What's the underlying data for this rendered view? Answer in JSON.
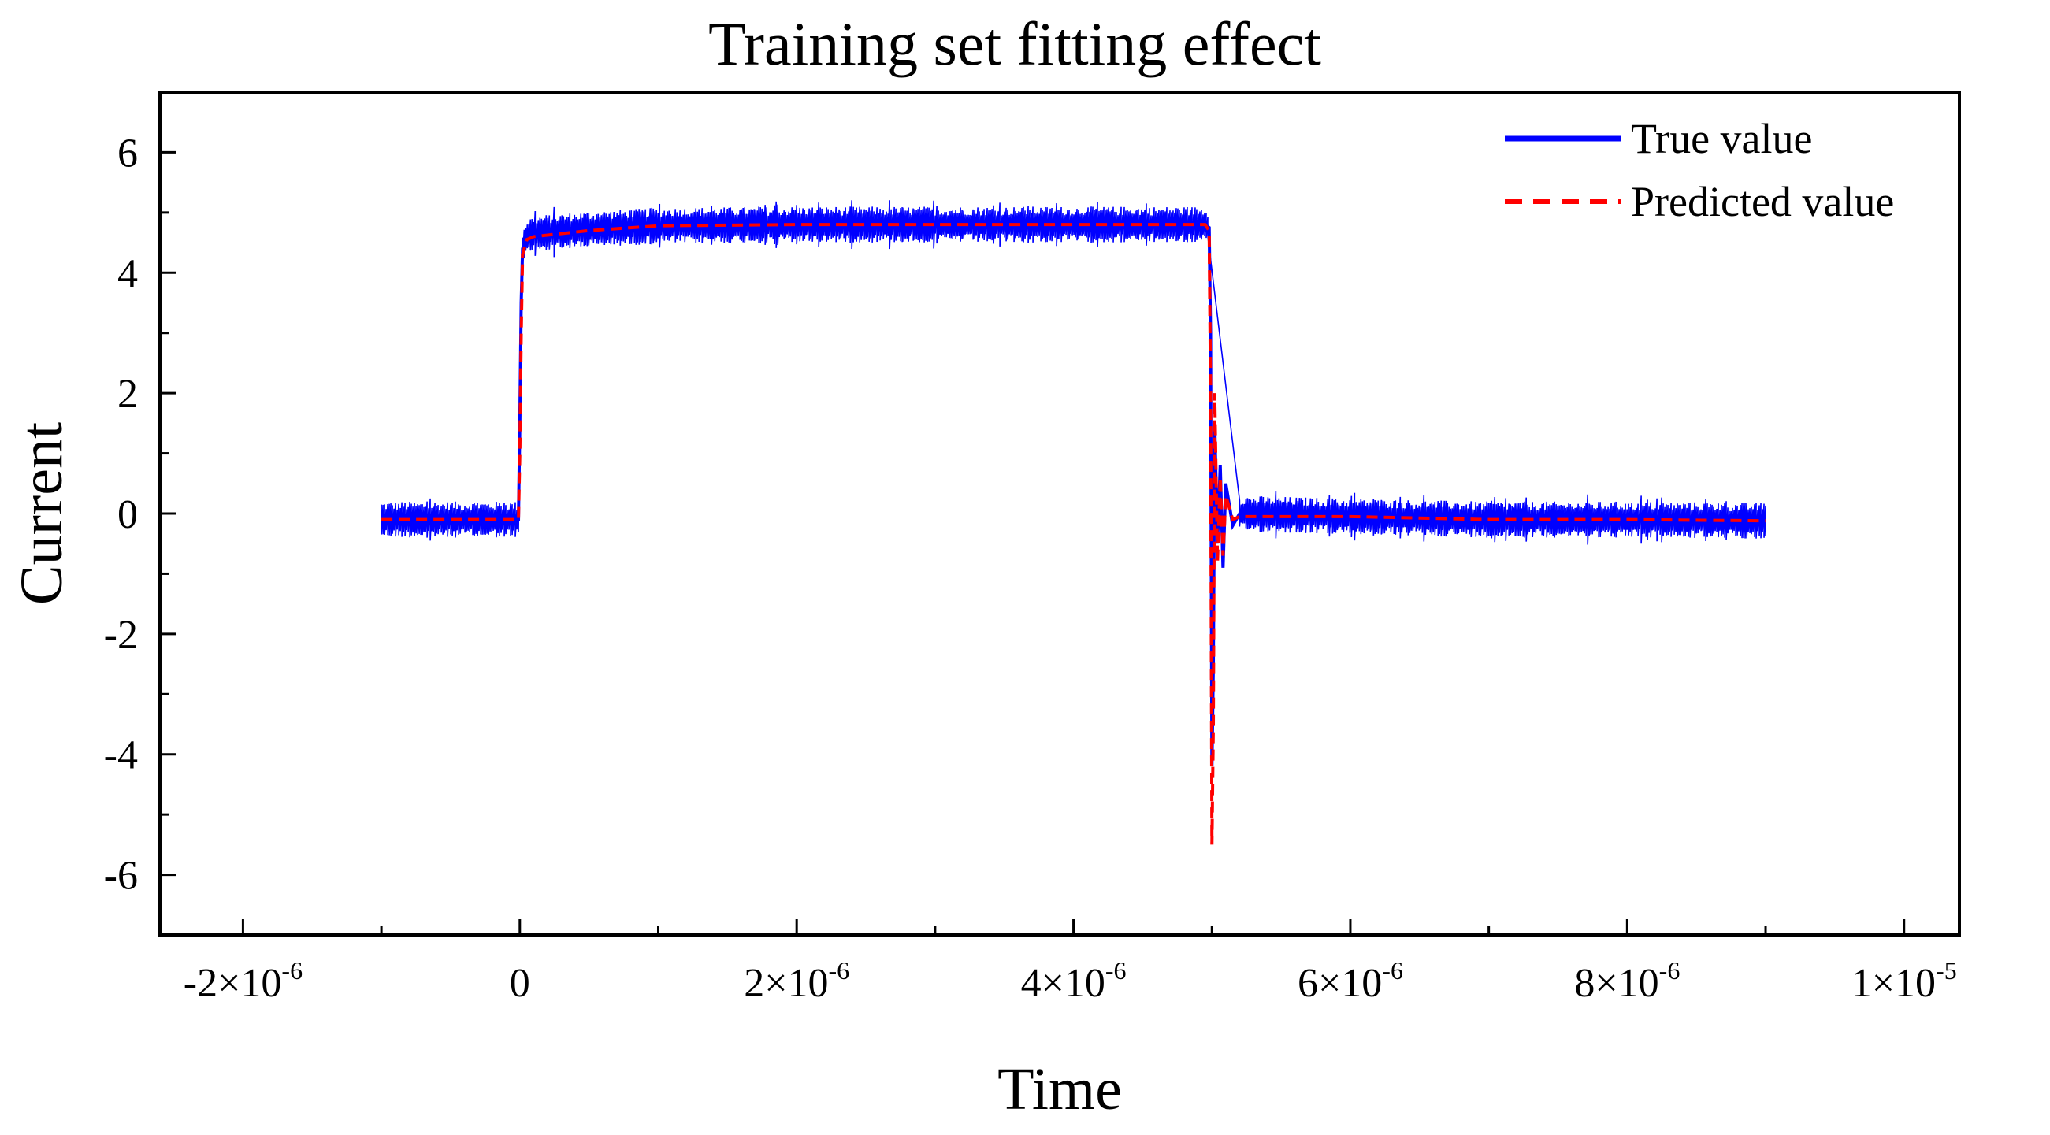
{
  "chart_data": {
    "type": "line",
    "title": "Training set fitting effect",
    "xlabel": "Time",
    "ylabel": "Current",
    "xlim": [
      -2.6e-06,
      1.04e-05
    ],
    "ylim": [
      -7,
      7
    ],
    "grid": false,
    "legend_position": "top-right",
    "x_ticks": [
      {
        "value": -2e-06,
        "base": "-2×10",
        "exp": "-6"
      },
      {
        "value": 0,
        "base": "0",
        "exp": ""
      },
      {
        "value": 2e-06,
        "base": "2×10",
        "exp": "-6"
      },
      {
        "value": 4e-06,
        "base": "4×10",
        "exp": "-6"
      },
      {
        "value": 6e-06,
        "base": "6×10",
        "exp": "-6"
      },
      {
        "value": 8e-06,
        "base": "8×10",
        "exp": "-6"
      },
      {
        "value": 1e-05,
        "base": "1×10",
        "exp": "-5"
      }
    ],
    "y_ticks": [
      {
        "value": 6,
        "label": "6"
      },
      {
        "value": 4,
        "label": "4"
      },
      {
        "value": 2,
        "label": "2"
      },
      {
        "value": 0,
        "label": "0"
      },
      {
        "value": -2,
        "label": "-2"
      },
      {
        "value": -4,
        "label": "-4"
      },
      {
        "value": -6,
        "label": "-6"
      }
    ],
    "series": [
      {
        "name": "True value",
        "color": "#0000ff",
        "style": "solid",
        "noise_band": 0.3,
        "x": [
          -1e-06,
          -1e-08,
          0,
          1e-08,
          2e-08,
          5e-08,
          1e-07,
          5e-07,
          1e-06,
          2e-06,
          3e-06,
          4e-06,
          4.95e-06,
          4.98e-06,
          4.99e-06,
          5e-06,
          5.01e-06,
          5.02e-06,
          5.04e-06,
          5.06e-06,
          5.08e-06,
          5.1e-06,
          5.15e-06,
          5.2e-06,
          6e-06,
          7e-06,
          8e-06,
          9e-06
        ],
        "values": [
          -0.1,
          -0.1,
          1.5,
          3.5,
          4.4,
          4.6,
          4.65,
          4.72,
          4.78,
          4.8,
          4.8,
          4.8,
          4.8,
          4.75,
          3.0,
          -4.2,
          -2.5,
          1.5,
          -0.5,
          0.8,
          -0.9,
          0.5,
          -0.2,
          0.0,
          -0.05,
          -0.1,
          -0.1,
          -0.12
        ]
      },
      {
        "name": "Predicted value",
        "color": "#ff0000",
        "style": "dashed",
        "x": [
          -1e-06,
          -1e-08,
          0,
          1e-08,
          2e-08,
          5e-08,
          1e-07,
          5e-07,
          1e-06,
          2e-06,
          3e-06,
          4e-06,
          4.95e-06,
          4.98e-06,
          4.99e-06,
          5e-06,
          5.01e-06,
          5.02e-06,
          5.04e-06,
          5.06e-06,
          5.08e-06,
          5.1e-06,
          5.15e-06,
          5.2e-06,
          6e-06,
          7e-06,
          8e-06,
          9e-06
        ],
        "values": [
          -0.1,
          -0.1,
          1.0,
          3.0,
          4.3,
          4.55,
          4.6,
          4.7,
          4.78,
          4.8,
          4.8,
          4.8,
          4.8,
          4.7,
          2.0,
          -5.5,
          -3.5,
          2.0,
          -0.8,
          0.6,
          -0.7,
          0.3,
          -0.1,
          -0.05,
          -0.05,
          -0.1,
          -0.1,
          -0.12
        ]
      }
    ]
  }
}
